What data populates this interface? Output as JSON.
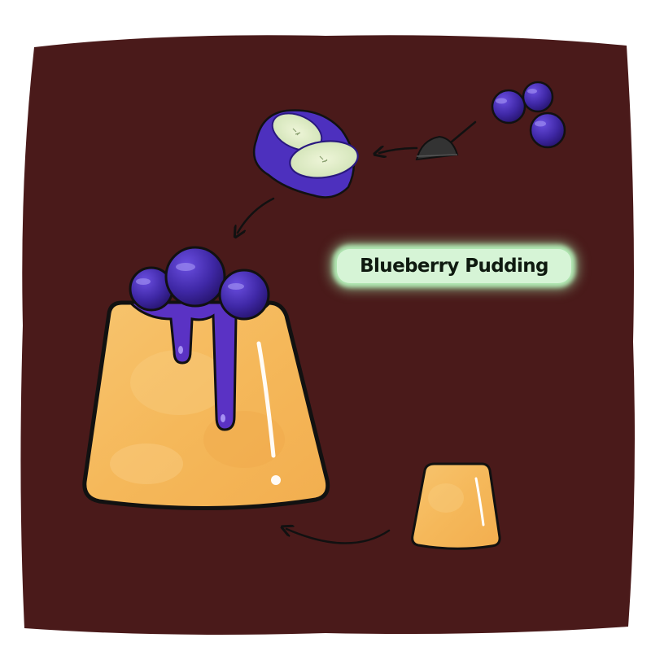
{
  "title": "Blueberry Pudding",
  "colors": {
    "background": "#4a1a1a",
    "berry": "#4a2fb8",
    "syrup": "#5a32c4",
    "pudding": "#f6bd60",
    "label_glow": "#b3ebb5",
    "outline": "#111111"
  },
  "icons": [
    "blueberries-icon",
    "flat-iron-icon",
    "cut-berry-icon",
    "blueberry-pudding-icon",
    "plain-pudding-icon",
    "arrow-icon"
  ]
}
